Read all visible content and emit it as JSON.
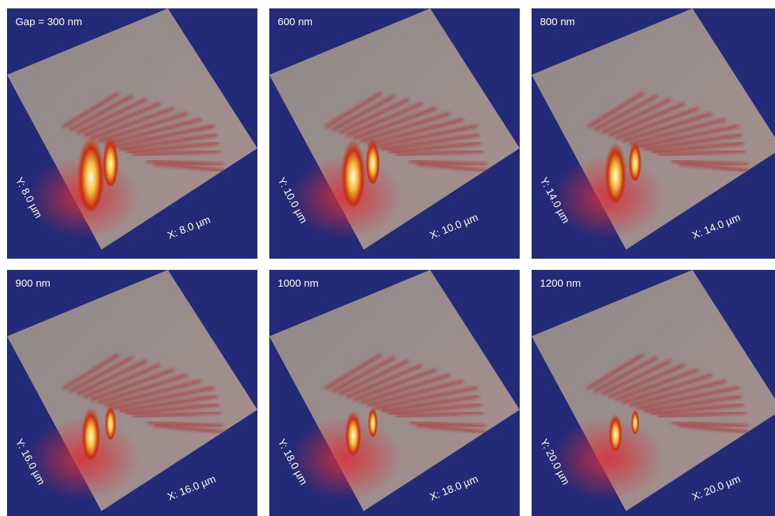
{
  "panels": [
    {
      "label": "Gap = 300 nm",
      "y_axis": "Y: 8.0 µm",
      "x_axis": "X: 8.0 µm"
    },
    {
      "label": "600 nm",
      "y_axis": "Y: 10.0 µm",
      "x_axis": "X: 10.0 µm"
    },
    {
      "label": "800 nm",
      "y_axis": "Y: 14.0 µm",
      "x_axis": "X: 14.0 µm"
    },
    {
      "label": "900 nm",
      "y_axis": "Y: 16.0 µm",
      "x_axis": "X: 16.0 µm"
    },
    {
      "label": "1000 nm",
      "y_axis": "Y: 18.0 µm",
      "x_axis": "X: 18.0 µm"
    },
    {
      "label": "1200 nm",
      "y_axis": "Y: 20.0 µm",
      "x_axis": "X: 20.0 µm"
    }
  ]
}
